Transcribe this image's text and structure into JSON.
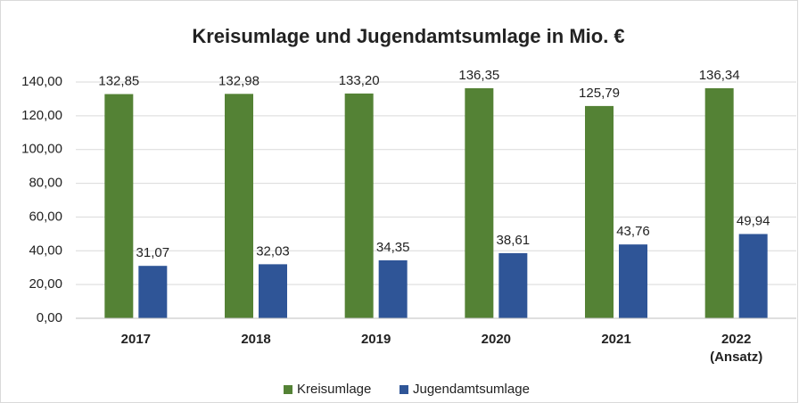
{
  "chart_data": {
    "type": "bar",
    "title": "Kreisumlage und Jugendamtsumlage in Mio. €",
    "categories": [
      "2017",
      "2018",
      "2019",
      "2020",
      "2021",
      "2022 (Ansatz)"
    ],
    "series": [
      {
        "name": "Kreisumlage",
        "color": "#548235",
        "values": [
          132.85,
          132.98,
          133.2,
          136.35,
          125.79,
          136.34
        ],
        "value_labels": [
          "132,85",
          "132,98",
          "133,20",
          "136,35",
          "125,79",
          "136,34"
        ]
      },
      {
        "name": "Jugendamtsumlage",
        "color": "#2f5597",
        "values": [
          31.07,
          32.03,
          34.35,
          38.61,
          43.76,
          49.94
        ],
        "value_labels": [
          "31,07",
          "32,03",
          "34,35",
          "38,61",
          "43,76",
          "49,94"
        ]
      }
    ],
    "ylim": [
      0,
      140
    ],
    "yticks": [
      {
        "value": 0,
        "label": "0,00"
      },
      {
        "value": 20,
        "label": "20,00"
      },
      {
        "value": 40,
        "label": "40,00"
      },
      {
        "value": 60,
        "label": "60,00"
      },
      {
        "value": 80,
        "label": "80,00"
      },
      {
        "value": 100,
        "label": "100,00"
      },
      {
        "value": 120,
        "label": "120,00"
      },
      {
        "value": 140,
        "label": "140,00"
      }
    ],
    "grid": true,
    "legend": "bottom"
  }
}
